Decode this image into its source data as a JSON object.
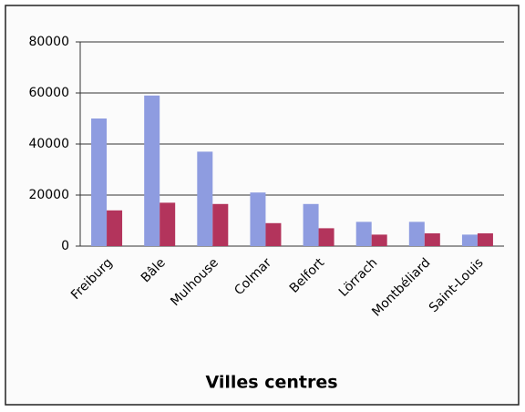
{
  "chart_data": {
    "type": "bar",
    "title": "Villes centres",
    "categories": [
      "Freiburg",
      "Bâle",
      "Mulhouse",
      "Colmar",
      "Belfort",
      "Lörrach",
      "Montbéliard",
      "Saint-Louis"
    ],
    "series": [
      {
        "color": "#8e9ce0",
        "values": [
          50000,
          59000,
          37000,
          21000,
          16500,
          9500,
          9500,
          4500
        ]
      },
      {
        "color": "#b3345c",
        "values": [
          14000,
          17000,
          16500,
          9000,
          7000,
          4500,
          5000,
          5000
        ]
      }
    ],
    "ylim": [
      0,
      80000
    ],
    "yticks": [
      0,
      20000,
      40000,
      60000,
      80000
    ],
    "grid": true
  }
}
